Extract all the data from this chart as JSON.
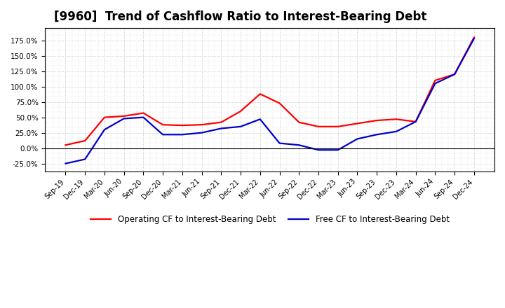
{
  "title": "[9960]  Trend of Cashflow Ratio to Interest-Bearing Debt",
  "x_labels": [
    "Sep-19",
    "Dec-19",
    "Mar-20",
    "Jun-20",
    "Sep-20",
    "Dec-20",
    "Mar-21",
    "Jun-21",
    "Sep-21",
    "Dec-21",
    "Mar-22",
    "Jun-22",
    "Sep-22",
    "Dec-22",
    "Mar-23",
    "Jun-23",
    "Sep-23",
    "Dec-23",
    "Mar-24",
    "Jun-24",
    "Sep-24",
    "Dec-24"
  ],
  "operating_cf": [
    5.0,
    12.0,
    50.0,
    52.0,
    57.0,
    38.0,
    37.0,
    38.0,
    42.0,
    60.0,
    88.0,
    73.0,
    42.0,
    35.0,
    35.0,
    40.0,
    45.0,
    47.0,
    43.0,
    110.0,
    120.0,
    180.0
  ],
  "free_cf": [
    -25.0,
    -18.0,
    30.0,
    48.0,
    50.0,
    22.0,
    22.0,
    25.0,
    32.0,
    35.0,
    47.0,
    8.0,
    5.0,
    -3.0,
    -3.0,
    15.0,
    22.0,
    27.0,
    43.0,
    105.0,
    120.0,
    178.0
  ],
  "ylim": [
    -37.5,
    195.0
  ],
  "yticks": [
    -25.0,
    0.0,
    25.0,
    50.0,
    75.0,
    100.0,
    125.0,
    150.0,
    175.0
  ],
  "operating_color": "#ff0000",
  "free_color": "#0000cc",
  "grid_color": "#999999",
  "background_color": "#ffffff",
  "plot_bg_color": "#ffffff",
  "legend_operating": "Operating CF to Interest-Bearing Debt",
  "legend_free": "Free CF to Interest-Bearing Debt",
  "title_fontsize": 12,
  "line_width": 1.6
}
